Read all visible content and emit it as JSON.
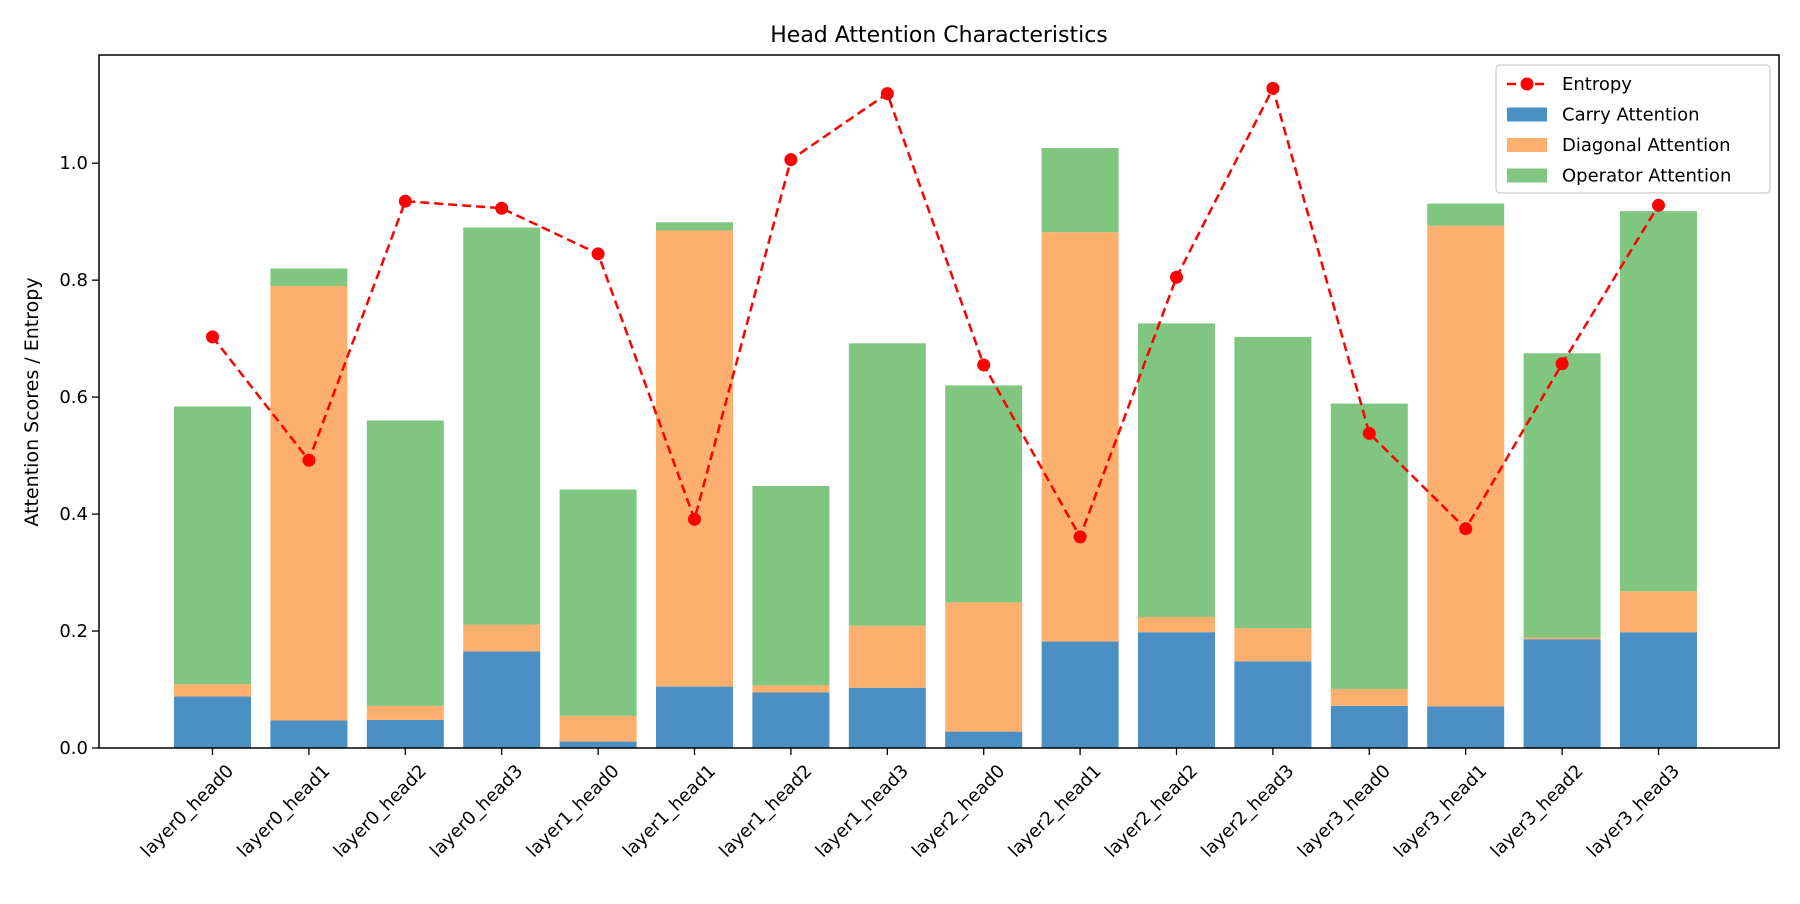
{
  "chart_data": {
    "type": "bar",
    "stacked": true,
    "title": "Head Attention Characteristics",
    "xlabel": "",
    "ylabel": "Attention Scores / Entropy",
    "ylim": [
      0,
      1.185
    ],
    "yticks": [
      "0.0",
      "0.2",
      "0.4",
      "0.6",
      "0.8",
      "1.0"
    ],
    "grid": false,
    "legend_position": "top-right",
    "categories": [
      "layer0_head0",
      "layer0_head1",
      "layer0_head2",
      "layer0_head3",
      "layer1_head0",
      "layer1_head1",
      "layer1_head2",
      "layer1_head3",
      "layer2_head0",
      "layer2_head1",
      "layer2_head2",
      "layer2_head3",
      "layer3_head0",
      "layer3_head1",
      "layer3_head2",
      "layer3_head3"
    ],
    "series": [
      {
        "name": "Carry Attention",
        "kind": "bar",
        "color": "#4a90c4",
        "values": [
          0.088,
          0.047,
          0.048,
          0.165,
          0.011,
          0.105,
          0.095,
          0.103,
          0.028,
          0.182,
          0.198,
          0.148,
          0.072,
          0.071,
          0.186,
          0.198
        ]
      },
      {
        "name": "Diagonal Attention",
        "kind": "bar",
        "color": "#fdb06e",
        "values": [
          0.021,
          0.743,
          0.024,
          0.046,
          0.044,
          0.78,
          0.012,
          0.106,
          0.221,
          0.7,
          0.026,
          0.057,
          0.029,
          0.822,
          0.003,
          0.07
        ]
      },
      {
        "name": "Operator Attention",
        "kind": "bar",
        "color": "#80c680",
        "values": [
          0.475,
          0.03,
          0.488,
          0.679,
          0.387,
          0.014,
          0.341,
          0.483,
          0.371,
          0.144,
          0.502,
          0.498,
          0.488,
          0.038,
          0.486,
          0.65
        ]
      },
      {
        "name": "Entropy",
        "kind": "line",
        "color": "#ff0000",
        "values": [
          0.703,
          0.492,
          0.935,
          0.923,
          0.845,
          0.391,
          1.006,
          1.119,
          0.655,
          0.361,
          0.805,
          1.128,
          0.538,
          0.375,
          0.657,
          0.928
        ]
      }
    ],
    "legend_order": [
      "Entropy",
      "Carry Attention",
      "Diagonal Attention",
      "Operator Attention"
    ]
  }
}
